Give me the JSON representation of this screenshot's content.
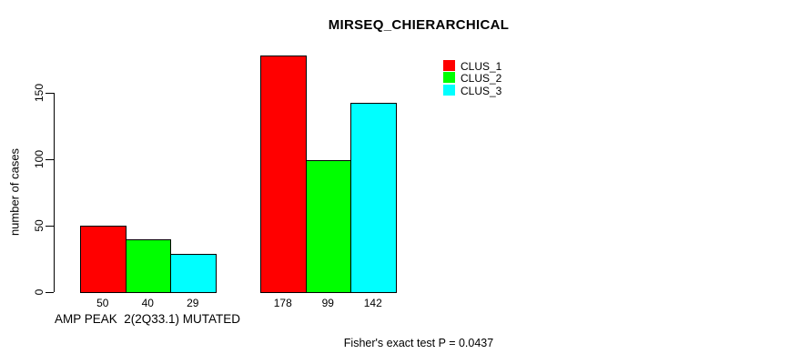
{
  "chart_data": {
    "type": "bar",
    "title": "MIRSEQ_CHIERARCHICAL",
    "ylabel": "number of cases",
    "xlabel": "AMP PEAK  2(2Q33.1) MUTATED",
    "annotation": "Fisher's exact test P = 0.0437",
    "categories": [
      "AMP PEAK  2(2Q33.1) MUTATED",
      ""
    ],
    "series": [
      {
        "name": "CLUS_1",
        "color": "#ff0000",
        "values": [
          50,
          178
        ]
      },
      {
        "name": "CLUS_2",
        "color": "#00ff00",
        "values": [
          40,
          99
        ]
      },
      {
        "name": "CLUS_3",
        "color": "#00ffff",
        "values": [
          29,
          142
        ]
      }
    ],
    "bar_value_labels": [
      [
        "50",
        "40",
        "29"
      ],
      [
        "178",
        "99",
        "142"
      ]
    ],
    "yticks": [
      0,
      50,
      100,
      150
    ],
    "ylim": [
      0,
      185
    ],
    "grid": false,
    "legend": {
      "position": "top-right",
      "entries": [
        {
          "label": "CLUS_1",
          "color": "#ff0000"
        },
        {
          "label": "CLUS_2",
          "color": "#00ff00"
        },
        {
          "label": "CLUS_3",
          "color": "#00ffff"
        }
      ]
    },
    "colors": {
      "axis": "#000000",
      "background": "#ffffff"
    }
  }
}
